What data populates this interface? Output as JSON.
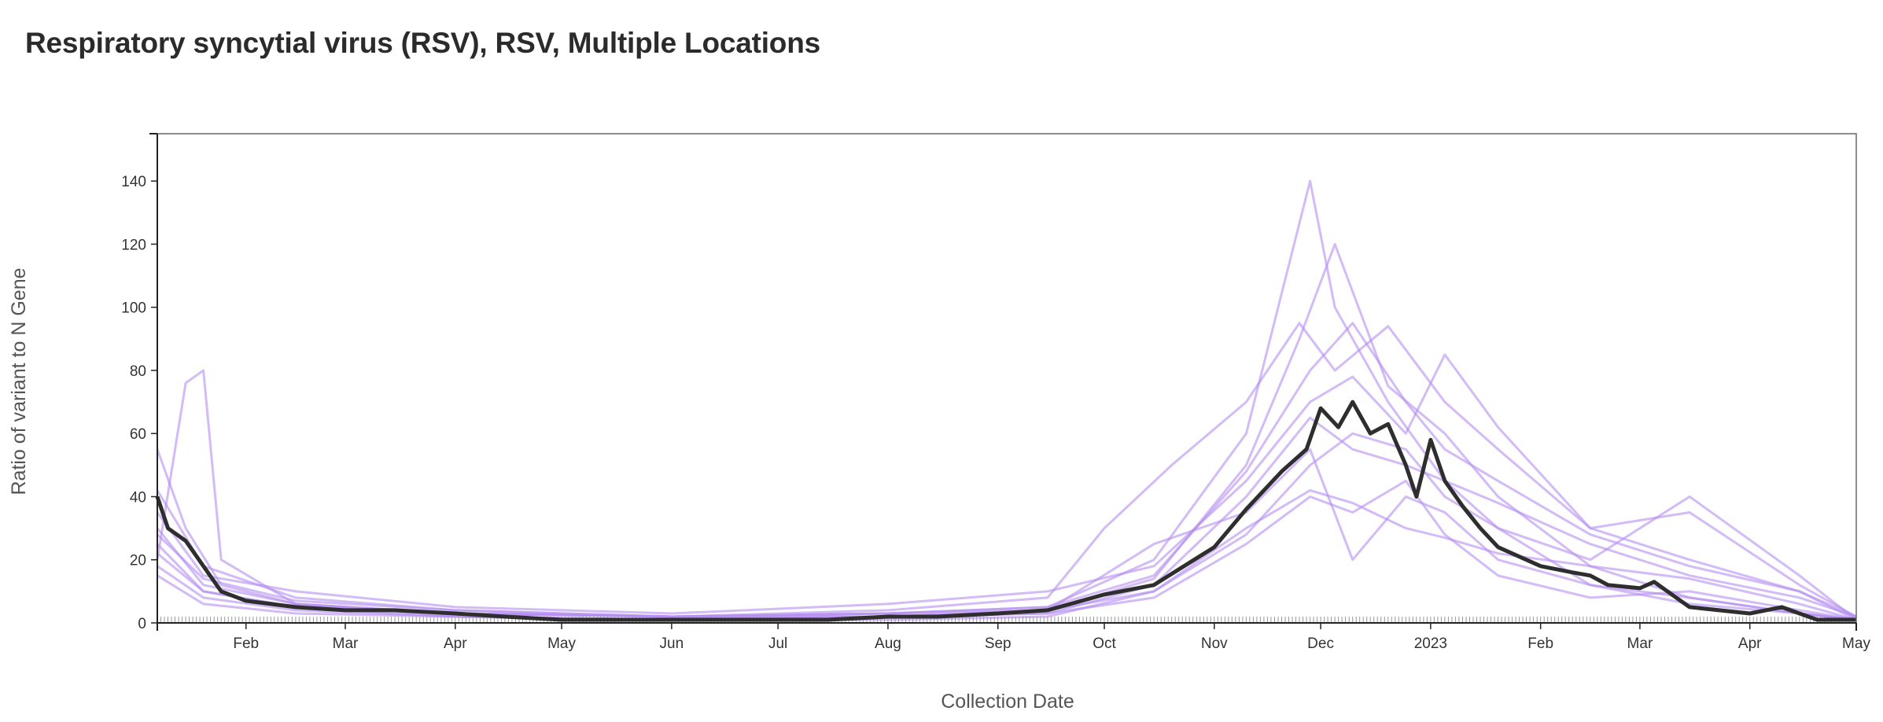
{
  "title": "Respiratory syncytial virus (RSV), RSV, Multiple Locations",
  "chart_data": {
    "type": "line",
    "xlabel": "Collection Date",
    "ylabel": "Ratio of variant to N Gene",
    "x_range": [
      "2022-01-07",
      "2023-05-01"
    ],
    "ylim": [
      0,
      155
    ],
    "y_ticks": [
      0,
      20,
      40,
      60,
      80,
      100,
      120,
      140
    ],
    "x_ticks": [
      {
        "date": "2022-02-01",
        "label": "Feb"
      },
      {
        "date": "2022-03-01",
        "label": "Mar"
      },
      {
        "date": "2022-04-01",
        "label": "Apr"
      },
      {
        "date": "2022-05-01",
        "label": "May"
      },
      {
        "date": "2022-06-01",
        "label": "Jun"
      },
      {
        "date": "2022-07-01",
        "label": "Jul"
      },
      {
        "date": "2022-08-01",
        "label": "Aug"
      },
      {
        "date": "2022-09-01",
        "label": "Sep"
      },
      {
        "date": "2022-10-01",
        "label": "Oct"
      },
      {
        "date": "2022-11-01",
        "label": "Nov"
      },
      {
        "date": "2022-12-01",
        "label": "Dec"
      },
      {
        "date": "2023-01-01",
        "label": "2023"
      },
      {
        "date": "2023-02-01",
        "label": "Feb"
      },
      {
        "date": "2023-03-01",
        "label": "Mar"
      },
      {
        "date": "2023-04-01",
        "label": "Apr"
      },
      {
        "date": "2023-05-01",
        "label": "May"
      }
    ],
    "grid": false,
    "colors": {
      "locations": "#b48ef0",
      "aggregate": "#2e2e2e"
    },
    "aggregate": {
      "x": [
        "2022-01-07",
        "2022-01-10",
        "2022-01-15",
        "2022-01-20",
        "2022-01-25",
        "2022-02-01",
        "2022-02-15",
        "2022-03-01",
        "2022-03-15",
        "2022-04-01",
        "2022-04-15",
        "2022-05-01",
        "2022-05-15",
        "2022-06-01",
        "2022-06-15",
        "2022-07-01",
        "2022-07-15",
        "2022-08-01",
        "2022-08-15",
        "2022-09-01",
        "2022-09-15",
        "2022-10-01",
        "2022-10-15",
        "2022-11-01",
        "2022-11-10",
        "2022-11-20",
        "2022-11-27",
        "2022-12-01",
        "2022-12-06",
        "2022-12-10",
        "2022-12-15",
        "2022-12-20",
        "2022-12-25",
        "2022-12-28",
        "2023-01-01",
        "2023-01-05",
        "2023-01-10",
        "2023-01-15",
        "2023-01-20",
        "2023-02-01",
        "2023-02-10",
        "2023-02-15",
        "2023-02-20",
        "2023-03-01",
        "2023-03-05",
        "2023-03-10",
        "2023-03-15",
        "2023-04-01",
        "2023-04-10",
        "2023-04-15",
        "2023-04-20",
        "2023-05-01"
      ],
      "y": [
        40,
        30,
        26,
        18,
        10,
        7,
        5,
        4,
        4,
        3,
        2,
        1,
        1,
        1,
        1,
        1,
        1,
        2,
        2,
        3,
        4,
        9,
        12,
        24,
        36,
        48,
        55,
        68,
        62,
        70,
        60,
        63,
        50,
        40,
        58,
        45,
        37,
        30,
        24,
        18,
        16,
        15,
        12,
        11,
        13,
        9,
        5,
        3,
        5,
        3,
        1,
        1
      ]
    },
    "locations": [
      {
        "x": [
          "2022-01-07",
          "2022-01-15",
          "2022-01-25",
          "2022-02-15",
          "2022-04-01",
          "2022-06-01",
          "2022-08-01",
          "2022-09-15",
          "2022-10-15",
          "2022-11-10",
          "2022-11-28",
          "2022-12-05",
          "2022-12-20",
          "2023-01-05",
          "2023-01-20",
          "2023-02-15",
          "2023-03-15",
          "2023-04-15",
          "2023-05-01"
        ],
        "y": [
          55,
          30,
          12,
          6,
          3,
          2,
          3,
          5,
          20,
          60,
          140,
          100,
          70,
          45,
          30,
          12,
          6,
          3,
          1
        ]
      },
      {
        "x": [
          "2022-01-07",
          "2022-01-15",
          "2022-01-20",
          "2022-01-25",
          "2022-02-15",
          "2022-04-01",
          "2022-06-01",
          "2022-08-01",
          "2022-09-15",
          "2022-10-15",
          "2022-11-10",
          "2022-11-25",
          "2022-12-05",
          "2022-12-20",
          "2023-01-05",
          "2023-01-20",
          "2023-02-15",
          "2023-03-15",
          "2023-04-15",
          "2023-05-01"
        ],
        "y": [
          20,
          76,
          80,
          20,
          6,
          3,
          2,
          2,
          4,
          14,
          50,
          90,
          120,
          75,
          60,
          40,
          18,
          8,
          3,
          1
        ]
      },
      {
        "x": [
          "2022-01-07",
          "2022-01-20",
          "2022-02-15",
          "2022-04-01",
          "2022-06-01",
          "2022-08-01",
          "2022-09-15",
          "2022-10-01",
          "2022-10-20",
          "2022-11-10",
          "2022-11-25",
          "2022-12-05",
          "2022-12-20",
          "2023-01-05",
          "2023-01-20",
          "2023-02-15",
          "2023-03-15",
          "2023-04-15",
          "2023-05-01"
        ],
        "y": [
          42,
          18,
          8,
          4,
          2,
          4,
          8,
          30,
          50,
          70,
          95,
          80,
          94,
          70,
          55,
          30,
          20,
          10,
          1
        ]
      },
      {
        "x": [
          "2022-01-07",
          "2022-01-20",
          "2022-02-15",
          "2022-04-01",
          "2022-06-01",
          "2022-08-01",
          "2022-09-15",
          "2022-10-15",
          "2022-11-10",
          "2022-11-28",
          "2022-12-10",
          "2022-12-25",
          "2023-01-05",
          "2023-01-20",
          "2023-02-15",
          "2023-03-15",
          "2023-04-15",
          "2023-05-01"
        ],
        "y": [
          35,
          15,
          10,
          5,
          3,
          6,
          10,
          18,
          45,
          70,
          78,
          60,
          85,
          62,
          30,
          35,
          12,
          2
        ]
      },
      {
        "x": [
          "2022-01-07",
          "2022-01-20",
          "2022-02-15",
          "2022-04-01",
          "2022-06-01",
          "2022-08-01",
          "2022-09-15",
          "2022-10-15",
          "2022-11-10",
          "2022-11-28",
          "2022-12-10",
          "2022-12-25",
          "2023-01-05",
          "2023-01-20",
          "2023-02-15",
          "2023-03-15",
          "2023-04-15",
          "2023-05-01"
        ],
        "y": [
          25,
          10,
          5,
          3,
          2,
          3,
          4,
          10,
          30,
          42,
          38,
          30,
          27,
          22,
          18,
          14,
          6,
          1
        ]
      },
      {
        "x": [
          "2022-01-07",
          "2022-01-20",
          "2022-02-15",
          "2022-04-01",
          "2022-06-01",
          "2022-08-01",
          "2022-09-15",
          "2022-10-15",
          "2022-11-10",
          "2022-11-28",
          "2022-12-10",
          "2022-12-25",
          "2023-01-05",
          "2023-01-20",
          "2023-02-15",
          "2023-03-15",
          "2023-04-15",
          "2023-05-01"
        ],
        "y": [
          18,
          8,
          4,
          2,
          1,
          2,
          3,
          8,
          25,
          40,
          35,
          45,
          28,
          15,
          8,
          10,
          4,
          1
        ]
      },
      {
        "x": [
          "2022-01-07",
          "2022-01-20",
          "2022-02-15",
          "2022-04-01",
          "2022-06-01",
          "2022-08-01",
          "2022-09-15",
          "2022-10-15",
          "2022-11-10",
          "2022-11-28",
          "2022-12-10",
          "2022-12-25",
          "2023-01-05",
          "2023-01-20",
          "2023-02-15",
          "2023-03-15",
          "2023-04-15",
          "2023-05-01"
        ],
        "y": [
          30,
          12,
          6,
          3,
          2,
          2,
          3,
          12,
          40,
          65,
          55,
          50,
          45,
          38,
          25,
          15,
          8,
          2
        ]
      },
      {
        "x": [
          "2022-01-07",
          "2022-01-20",
          "2022-02-15",
          "2022-04-01",
          "2022-06-01",
          "2022-08-01",
          "2022-09-15",
          "2022-10-15",
          "2022-11-10",
          "2022-11-28",
          "2022-12-10",
          "2022-12-25",
          "2023-01-05",
          "2023-01-20",
          "2023-02-15",
          "2023-03-15",
          "2023-04-15",
          "2023-05-01"
        ],
        "y": [
          22,
          10,
          5,
          2,
          1,
          2,
          4,
          25,
          35,
          55,
          20,
          40,
          35,
          20,
          12,
          8,
          3,
          1
        ]
      },
      {
        "x": [
          "2022-01-07",
          "2022-01-20",
          "2022-02-15",
          "2022-04-01",
          "2022-06-01",
          "2022-08-01",
          "2022-09-15",
          "2022-10-15",
          "2022-11-10",
          "2022-11-28",
          "2022-12-10",
          "2022-12-25",
          "2023-01-05",
          "2023-01-20",
          "2023-02-15",
          "2023-03-15",
          "2023-04-15",
          "2023-05-01"
        ],
        "y": [
          28,
          14,
          7,
          4,
          2,
          3,
          5,
          15,
          48,
          80,
          95,
          70,
          55,
          45,
          28,
          18,
          10,
          2
        ]
      },
      {
        "x": [
          "2022-01-07",
          "2022-01-20",
          "2022-02-15",
          "2022-04-01",
          "2022-06-01",
          "2022-08-01",
          "2022-09-15",
          "2022-10-15",
          "2022-11-10",
          "2022-11-28",
          "2022-12-10",
          "2022-12-25",
          "2023-01-05",
          "2023-01-20",
          "2023-02-15",
          "2023-03-15",
          "2023-04-15",
          "2023-05-01"
        ],
        "y": [
          15,
          6,
          3,
          2,
          1,
          1,
          2,
          10,
          28,
          50,
          60,
          55,
          40,
          30,
          20,
          40,
          15,
          1
        ]
      }
    ]
  }
}
